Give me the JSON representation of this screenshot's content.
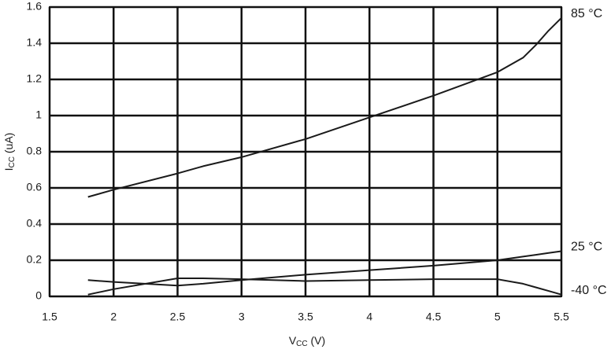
{
  "chart_data": {
    "type": "line",
    "x_label": {
      "main": "V",
      "sub": "CC",
      "rest": " (V)"
    },
    "y_label": {
      "main": "I",
      "sub": "CC",
      "rest": " (uA)"
    },
    "xlim": [
      1.5,
      5.5
    ],
    "xticks": [
      1.5,
      2,
      2.5,
      3,
      3.5,
      4,
      4.5,
      5,
      5.5
    ],
    "ylim": [
      0,
      1.6
    ],
    "yticks": [
      0,
      0.2,
      0.4,
      0.6,
      0.8,
      1,
      1.2,
      1.4,
      1.6
    ],
    "grid": true,
    "x": [
      1.8,
      2.0,
      2.5,
      2.7,
      3.0,
      3.5,
      4.0,
      4.5,
      5.0,
      5.2,
      5.3,
      5.4,
      5.5
    ],
    "series": [
      {
        "name": "85 °C",
        "color": "#1a1a1a",
        "values": [
          0.55,
          0.59,
          0.68,
          0.72,
          0.77,
          0.87,
          0.99,
          1.11,
          1.24,
          1.32,
          1.39,
          1.47,
          1.54
        ]
      },
      {
        "name": "25 °C",
        "color": "#1a1a1a",
        "values": [
          0.09,
          0.08,
          0.06,
          0.07,
          0.09,
          0.12,
          0.145,
          0.17,
          0.2,
          0.22,
          0.23,
          0.24,
          0.25
        ]
      },
      {
        "name": "-40 °C",
        "color": "#1a1a1a",
        "values": [
          0.01,
          0.04,
          0.1,
          0.1,
          0.095,
          0.085,
          0.09,
          0.095,
          0.095,
          0.07,
          0.05,
          0.03,
          0.01
        ]
      }
    ]
  }
}
